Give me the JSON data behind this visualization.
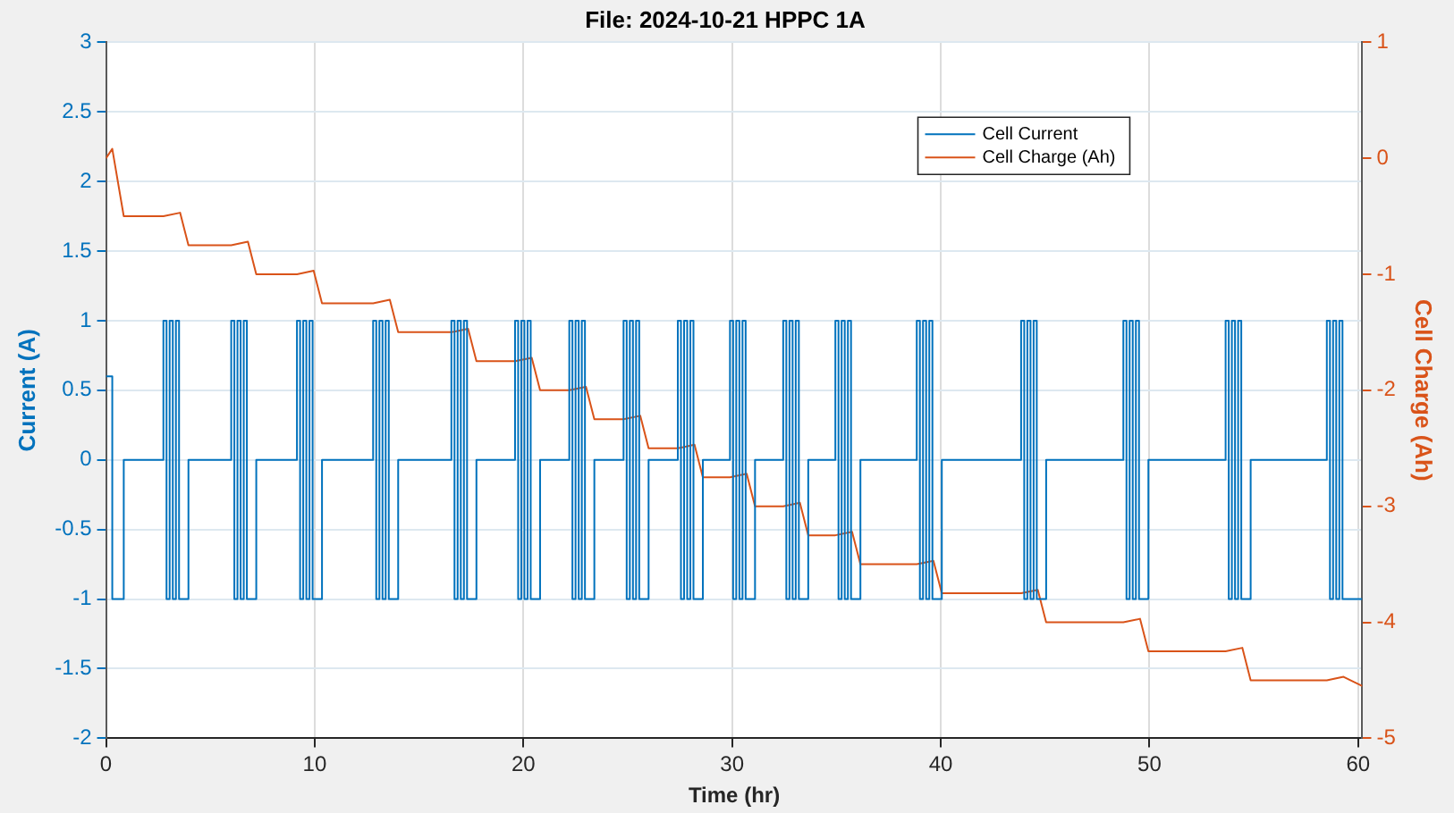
{
  "chart_data": {
    "type": "line",
    "title": "File: 2024-10-21 HPPC 1A",
    "xlabel": "Time (hr)",
    "ylabel": "Current (A)",
    "y2label": "Cell Charge (Ah)",
    "xlim": [
      0,
      60.2
    ],
    "xticks": [
      0,
      10,
      20,
      30,
      40,
      50,
      60
    ],
    "ylim": [
      -2,
      3
    ],
    "yticks": [
      -2,
      -1.5,
      -1,
      -0.5,
      0,
      0.5,
      1,
      1.5,
      2,
      2.5,
      3
    ],
    "y2lim": [
      -5,
      1
    ],
    "y2ticks": [
      -5,
      -4,
      -3,
      -2,
      -1,
      0,
      1
    ],
    "grid": true,
    "legend": "top right",
    "marker": "none",
    "line_style": "solid",
    "series": [
      {
        "name": "Cell Current",
        "type": "step",
        "color": "#0072bd",
        "x": [
          0,
          0.3,
          0.85,
          2.75,
          2.9,
          3.05,
          3.2,
          3.35,
          3.5,
          3.95,
          6,
          6.15,
          6.3,
          6.45,
          6.6,
          6.75,
          7.2,
          9.15,
          9.3,
          9.45,
          9.6,
          9.75,
          9.9,
          10.35,
          12.8,
          12.95,
          13.1,
          13.25,
          13.4,
          13.55,
          14,
          16.55,
          16.7,
          16.85,
          17,
          17.15,
          17.3,
          17.75,
          19.6,
          19.75,
          19.9,
          20.05,
          20.2,
          20.35,
          20.8,
          22.2,
          22.35,
          22.5,
          22.65,
          22.8,
          22.95,
          23.4,
          24.8,
          24.95,
          25.1,
          25.25,
          25.4,
          25.55,
          26,
          27.4,
          27.55,
          27.7,
          27.85,
          28,
          28.15,
          28.6,
          29.9,
          30.05,
          30.2,
          30.35,
          30.5,
          30.65,
          31.1,
          32.45,
          32.6,
          32.75,
          32.9,
          33.05,
          33.2,
          33.65,
          34.95,
          35.1,
          35.25,
          35.4,
          35.55,
          35.7,
          36.15,
          38.85,
          39,
          39.15,
          39.3,
          39.45,
          39.6,
          40.05,
          43.85,
          44,
          44.15,
          44.3,
          44.45,
          44.6,
          45.05,
          48.75,
          48.9,
          49.05,
          49.2,
          49.35,
          49.5,
          49.95,
          53.65,
          53.8,
          53.95,
          54.1,
          54.25,
          54.4,
          54.85,
          58.5,
          58.65,
          58.8,
          58.95,
          59.1,
          59.25,
          60.2
        ],
        "values": [
          0.6,
          -1,
          0,
          1,
          -1,
          1,
          -1,
          1,
          -1,
          0,
          1,
          -1,
          1,
          -1,
          1,
          -1,
          0,
          1,
          -1,
          1,
          -1,
          1,
          -1,
          0,
          1,
          -1,
          1,
          -1,
          1,
          -1,
          0,
          1,
          -1,
          1,
          -1,
          1,
          -1,
          0,
          1,
          -1,
          1,
          -1,
          1,
          -1,
          0,
          1,
          -1,
          1,
          -1,
          1,
          -1,
          0,
          1,
          -1,
          1,
          -1,
          1,
          -1,
          0,
          1,
          -1,
          1,
          -1,
          1,
          -1,
          0,
          1,
          -1,
          1,
          -1,
          1,
          -1,
          0,
          1,
          -1,
          1,
          -1,
          1,
          -1,
          0,
          1,
          -1,
          1,
          -1,
          1,
          -1,
          0,
          1,
          -1,
          1,
          -1,
          1,
          -1,
          0,
          1,
          -1,
          1,
          -1,
          1,
          -1,
          0,
          1,
          -1,
          1,
          -1,
          1,
          -1,
          0,
          1,
          -1,
          1,
          -1,
          1,
          -1,
          0,
          1,
          -1,
          1,
          -1,
          1,
          -1,
          -1
        ]
      },
      {
        "name": "Cell Charge (Ah)",
        "type": "line",
        "axis": "y2",
        "color": "#d95319",
        "x": [
          0,
          0.3,
          0.85,
          2.75,
          3.55,
          3.95,
          6,
          6.8,
          7.2,
          9.15,
          9.95,
          10.35,
          12.8,
          13.6,
          14,
          16.55,
          17.35,
          17.75,
          19.6,
          20.4,
          20.8,
          22.2,
          23,
          23.4,
          24.8,
          25.6,
          26,
          27.4,
          28.2,
          28.6,
          29.9,
          30.7,
          31.1,
          32.45,
          33.25,
          33.65,
          34.95,
          35.75,
          36.15,
          38.85,
          39.65,
          40.05,
          43.85,
          44.65,
          45.05,
          48.75,
          49.55,
          49.95,
          53.65,
          54.45,
          54.85,
          58.5,
          59.3,
          60.2
        ],
        "values": [
          0,
          0.08,
          -0.5,
          -0.5,
          -0.47,
          -0.75,
          -0.75,
          -0.72,
          -1,
          -1,
          -0.97,
          -1.25,
          -1.25,
          -1.22,
          -1.5,
          -1.5,
          -1.47,
          -1.75,
          -1.75,
          -1.72,
          -2,
          -2,
          -1.97,
          -2.25,
          -2.25,
          -2.22,
          -2.5,
          -2.5,
          -2.47,
          -2.75,
          -2.75,
          -2.72,
          -3,
          -3,
          -2.97,
          -3.25,
          -3.25,
          -3.22,
          -3.5,
          -3.5,
          -3.47,
          -3.75,
          -3.75,
          -3.72,
          -4,
          -4,
          -3.97,
          -4.25,
          -4.25,
          -4.22,
          -4.5,
          -4.5,
          -4.47,
          -4.55
        ]
      }
    ]
  }
}
